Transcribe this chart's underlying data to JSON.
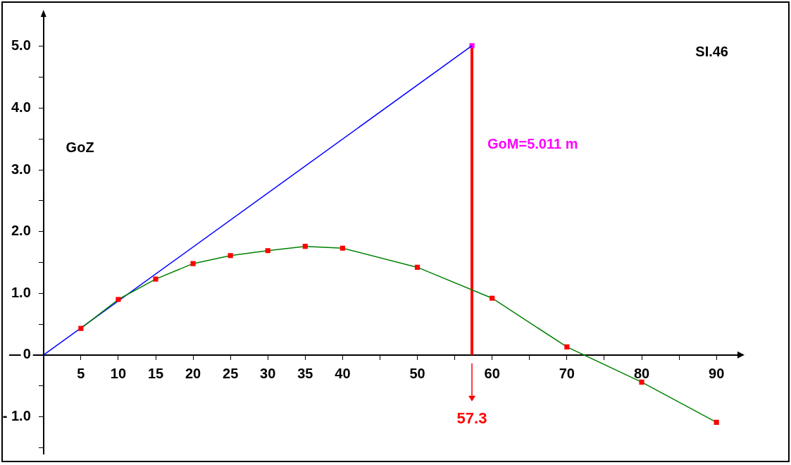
{
  "chart_data": {
    "type": "line",
    "title": "SI.46",
    "ylabel": "GoZ",
    "xlim": [
      -4.5,
      93
    ],
    "ylim": [
      -1.6,
      5.5
    ],
    "xticks": [
      5,
      10,
      15,
      20,
      25,
      30,
      35,
      40,
      {
        "value": 45,
        "label": null
      },
      50,
      {
        "value": 55,
        "label": null
      },
      60,
      {
        "value": 65,
        "label": null
      },
      70,
      {
        "value": 75,
        "label": null
      },
      80,
      {
        "value": 85,
        "label": null
      },
      90
    ],
    "yticks": [
      {
        "value": -1.5,
        "label": null
      },
      {
        "value": -1,
        "label": "- 1.0"
      },
      {
        "value": -0.5,
        "label": null
      },
      0,
      {
        "value": 0.5,
        "label": null
      },
      {
        "value": 1,
        "label": "1.0"
      },
      {
        "value": 1.5,
        "label": null
      },
      {
        "value": 2,
        "label": "2.0"
      },
      {
        "value": 2.5,
        "label": null
      },
      {
        "value": 3,
        "label": "3.0"
      },
      {
        "value": 3.5,
        "label": null
      },
      {
        "value": 4,
        "label": "4.0"
      },
      {
        "value": 4.5,
        "label": null
      },
      {
        "value": 5,
        "label": "5.0"
      }
    ],
    "grid": false,
    "legend": false,
    "series": [
      {
        "color": "#008000",
        "marker": "square",
        "colors": [
          "#ff0000",
          "#ff0000",
          "#ff0000",
          "#ff0000",
          "#ff0000",
          "#ff0000",
          "#ff0000",
          "#ff0000",
          "#ff0000",
          "#ff0000",
          "#ff0000",
          "#ff0000",
          "#ff0000"
        ],
        "x": [
          5,
          10,
          15,
          20,
          25,
          30,
          35,
          40,
          50,
          60,
          70,
          80,
          90
        ],
        "values": [
          0.43,
          0.9,
          1.23,
          1.48,
          1.61,
          1.69,
          1.76,
          1.73,
          1.42,
          0.92,
          0.13,
          -0.44,
          -1.09
        ]
      },
      {
        "color": "#0000ff",
        "marker": "none",
        "x": [
          0,
          57.3
        ],
        "values": [
          0,
          5.011
        ]
      },
      {
        "color": "#ff00ff",
        "marker": "square",
        "x": [
          57.3
        ],
        "values": [
          5.011
        ]
      }
    ],
    "ref_lines": [
      {
        "axis": "x",
        "value": 57.3,
        "label": "57.3",
        "color": "#ff0000"
      }
    ],
    "annotations": [
      {
        "text": "GoM=5.011 m",
        "x": 57.3,
        "y": 3.4
      }
    ]
  }
}
